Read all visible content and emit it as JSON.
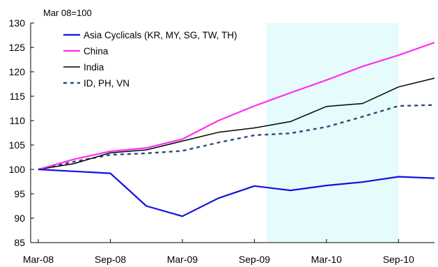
{
  "chart_data": {
    "type": "line",
    "unit_note": "Mar 08=100",
    "x": [
      "Mar-08",
      "Jun-08",
      "Sep-08",
      "Dec-08",
      "Mar-09",
      "Jun-09",
      "Sep-09",
      "Dec-09",
      "Mar-10",
      "Jun-10",
      "Sep-10",
      "Dec-10"
    ],
    "xticks": [
      "Mar-08",
      "Sep-08",
      "Mar-09",
      "Sep-09",
      "Mar-10",
      "Sep-10"
    ],
    "ylim": [
      85,
      130
    ],
    "yticks": [
      85,
      90,
      95,
      100,
      105,
      110,
      115,
      120,
      125,
      130
    ],
    "grid": false,
    "legend_position": "top-left",
    "shaded_range": {
      "from": "Oct-09",
      "to": "Sep-10",
      "color": "#e6fbfb"
    },
    "series": [
      {
        "name": "Asia Cyclicals (KR, MY, SG, TW, TH)",
        "color": "#1010e0",
        "style": "solid",
        "values": [
          100,
          99.6,
          99.2,
          92.5,
          90.4,
          94.1,
          96.6,
          95.7,
          96.7,
          97.4,
          98.5,
          98.2
        ]
      },
      {
        "name": "China",
        "color": "#ff2ef0",
        "style": "solid",
        "values": [
          100,
          102.1,
          103.7,
          104.4,
          106.2,
          110.0,
          113.0,
          115.7,
          118.3,
          121.1,
          123.4,
          126.0
        ]
      },
      {
        "name": "India",
        "color": "#000000",
        "style": "solid",
        "values": [
          100,
          101.2,
          103.4,
          104.0,
          105.8,
          107.6,
          108.5,
          109.8,
          112.9,
          113.5,
          116.9,
          118.7
        ]
      },
      {
        "name": "ID, PH, VN",
        "color": "#2a4a7a",
        "style": "dashed",
        "values": [
          100,
          101.6,
          103.0,
          103.3,
          103.8,
          105.5,
          107.0,
          107.4,
          108.7,
          110.8,
          113.0,
          113.2
        ]
      }
    ]
  }
}
